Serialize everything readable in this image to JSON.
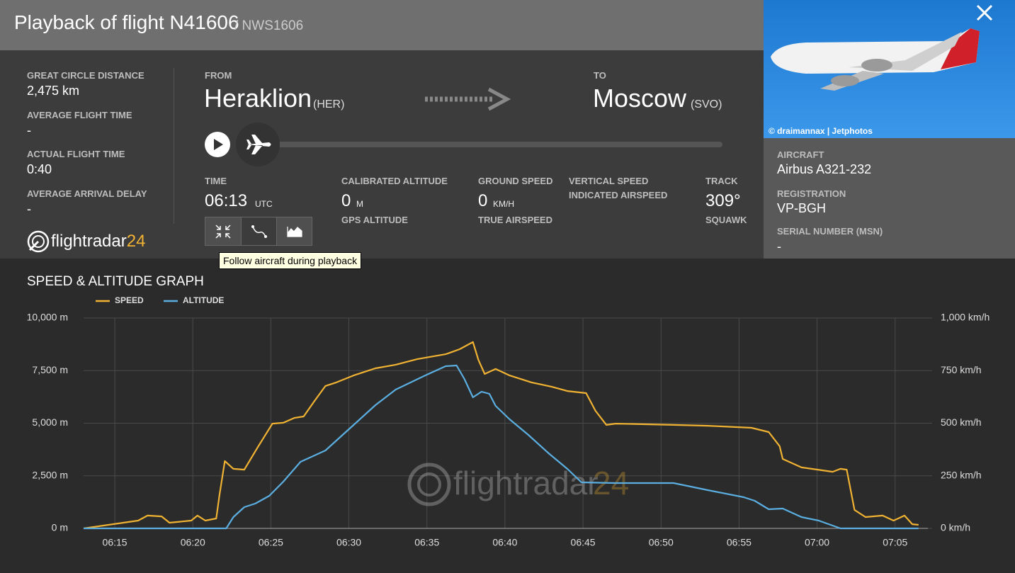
{
  "header": {
    "title": "Playback of flight N41606",
    "callsign": "/ NWS1606"
  },
  "stats": [
    {
      "label": "GREAT CIRCLE DISTANCE",
      "value": "2,475 km"
    },
    {
      "label": "AVERAGE FLIGHT TIME",
      "value": "-"
    },
    {
      "label": "ACTUAL FLIGHT TIME",
      "value": "0:40"
    },
    {
      "label": "AVERAGE ARRIVAL DELAY",
      "value": "-"
    }
  ],
  "logo": {
    "text": "flightradar",
    "suffix": "24"
  },
  "route": {
    "from_label": "FROM",
    "from_city": "Heraklion",
    "from_code": "(HER)",
    "to_label": "TO",
    "to_city": "Moscow",
    "to_code": "(SVO)"
  },
  "fields": {
    "time_label": "TIME",
    "time_value": "06:13",
    "time_unit": "UTC",
    "cal_alt_label": "CALIBRATED ALTITUDE",
    "cal_alt_value": "0",
    "cal_alt_unit": "M",
    "gps_alt_label": "GPS ALTITUDE",
    "ground_speed_label": "GROUND SPEED",
    "ground_speed_value": "0",
    "ground_speed_unit": "KM/H",
    "true_airspeed_label": "TRUE AIRSPEED",
    "vertical_speed_label": "VERTICAL SPEED",
    "indicated_airspeed_label": "INDICATED AIRSPEED",
    "track_label": "TRACK",
    "track_value": "309°",
    "squawk_label": "SQUAWK"
  },
  "tooltip": "Follow aircraft during playback",
  "photo_credit": "© draimannax | Jetphotos",
  "aircraft": [
    {
      "label": "AIRCRAFT",
      "value": "Airbus A321-232"
    },
    {
      "label": "REGISTRATION",
      "value": "VP-BGH"
    },
    {
      "label": "SERIAL NUMBER (MSN)",
      "value": "-"
    }
  ],
  "chart_data": {
    "type": "line",
    "title": "SPEED & ALTITUDE GRAPH",
    "xlim": [
      373,
      427.1
    ],
    "xticks": [
      {
        "value": 375,
        "label": "06:15"
      },
      {
        "value": 380,
        "label": "06:20"
      },
      {
        "value": 385,
        "label": "06:25"
      },
      {
        "value": 390,
        "label": "06:30"
      },
      {
        "value": 395,
        "label": "06:35"
      },
      {
        "value": 400,
        "label": "06:40"
      },
      {
        "value": 405,
        "label": "06:45"
      },
      {
        "value": 410,
        "label": "06:50"
      },
      {
        "value": 415,
        "label": "06:55"
      },
      {
        "value": 420,
        "label": "07:00"
      },
      {
        "value": 425,
        "label": "07:05"
      }
    ],
    "ylim": [
      0,
      10000
    ],
    "yticks": [
      {
        "value": 0,
        "label": "0 m"
      },
      {
        "value": 2500,
        "label": "2,500 m"
      },
      {
        "value": 5000,
        "label": "5,000 m"
      },
      {
        "value": 7500,
        "label": "7,500 m"
      },
      {
        "value": 10000,
        "label": "10,000 m"
      }
    ],
    "y2lim": [
      0,
      1000
    ],
    "y2ticks": [
      {
        "value": 0,
        "label": "0 km/h"
      },
      {
        "value": 250,
        "label": "250 km/h"
      },
      {
        "value": 500,
        "label": "500 km/h"
      },
      {
        "value": 750,
        "label": "750 km/h"
      },
      {
        "value": 1000,
        "label": "1,000 km/h"
      }
    ],
    "grid": true,
    "series": [
      {
        "name": "SPEED",
        "color": "#f0b232",
        "axis": "y2",
        "x": [
          373.0,
          376.5,
          377.1,
          378.0,
          378.5,
          379.9,
          380.3,
          380.8,
          381.5,
          381.7,
          382.05,
          382.6,
          383.3,
          384.2,
          385.1,
          385.8,
          386.5,
          387.1,
          387.8,
          388.5,
          389.2,
          390.3,
          391.7,
          393.0,
          394.4,
          396.2,
          397.1,
          397.95,
          398.3,
          398.7,
          399.4,
          400.3,
          401.7,
          403.0,
          404.0,
          405.2,
          405.8,
          406.5,
          407.1,
          410.8,
          413.0,
          415.8,
          416.9,
          417.6,
          417.8,
          419.0,
          421.0,
          421.5,
          421.9,
          422.4,
          423.1,
          424.2,
          424.9,
          425.6,
          426.1,
          426.5
        ],
        "values": [
          0,
          37,
          61,
          57,
          27,
          37,
          61,
          37,
          47,
          155,
          320,
          283,
          279,
          391,
          498,
          502,
          525,
          532,
          606,
          677,
          694,
          727,
          761,
          778,
          805,
          828,
          852,
          886,
          801,
          734,
          758,
          727,
          694,
          673,
          653,
          643,
          559,
          492,
          498,
          492,
          488,
          478,
          458,
          391,
          330,
          290,
          269,
          283,
          279,
          88,
          54,
          61,
          37,
          61,
          20,
          17
        ]
      },
      {
        "name": "ALTITUDE",
        "color": "#5aaee0",
        "axis": "y",
        "x": [
          373.0,
          382.14,
          382.6,
          383.3,
          384.0,
          384.9,
          385.8,
          386.9,
          387.8,
          388.5,
          389.2,
          390.3,
          391.7,
          393.0,
          394.9,
          396.2,
          396.9,
          397.4,
          397.95,
          398.5,
          399.0,
          399.4,
          400.3,
          401.5,
          402.8,
          404.0,
          404.9,
          407.1,
          410.8,
          413.0,
          415.3,
          416.0,
          416.9,
          417.8,
          419.0,
          420.1,
          421.5,
          426.5
        ],
        "values": [
          0,
          0,
          539,
          1010,
          1178,
          1549,
          2222,
          3165,
          3468,
          3704,
          4175,
          4916,
          5859,
          6599,
          7273,
          7710,
          7744,
          7104,
          6229,
          6498,
          6397,
          5825,
          5185,
          4444,
          3569,
          2828,
          2189,
          2155,
          2155,
          1818,
          1481,
          1313,
          909,
          943,
          539,
          370,
          0,
          0
        ]
      }
    ]
  }
}
